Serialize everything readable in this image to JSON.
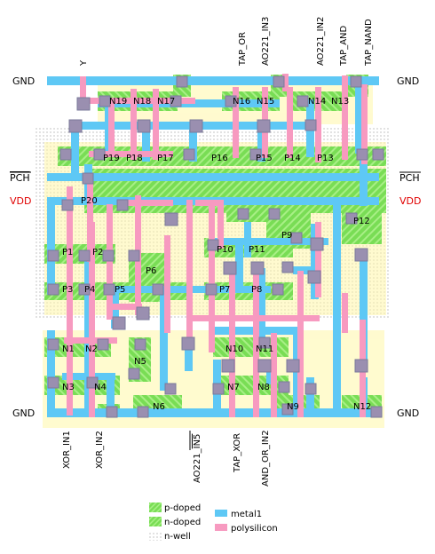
{
  "colors": {
    "metal1": "#5ec8f5",
    "polysilicon": "#f79ac0",
    "diff": "#6fdc4f",
    "contact": "#7a7a9a",
    "nwell_dot": "#bbbbbb",
    "vdd_label": "#e00000"
  },
  "rails": {
    "gnd_left": "GND",
    "gnd_right": "GND",
    "pch_left": "PCH",
    "pch_right": "PCH",
    "vdd_left": "VDD",
    "vdd_right": "VDD"
  },
  "top_pins": [
    "Y",
    "TAP_OR",
    "AO221_IN3",
    "AO221_IN2",
    "TAP_AND",
    "TAP_NAND"
  ],
  "bottom_pins": [
    "XOR_IN1",
    "XOR_IN2",
    "AO221_IN5",
    "TAP_XOR",
    "AND_OR_IN2"
  ],
  "bottom_overlined": "IN5",
  "bottom_prefix": "AO221_",
  "transistors": {
    "top_n": [
      "N19",
      "N18",
      "N17",
      "N16",
      "N15",
      "N14",
      "N13"
    ],
    "p_row": [
      "P19",
      "P18",
      "P17",
      "P16",
      "P15",
      "P14",
      "P13"
    ],
    "p_misc": [
      "P20",
      "P12",
      "P9",
      "P10",
      "P11",
      "P1",
      "P2",
      "P6",
      "P3",
      "P4",
      "P5",
      "P7",
      "P8"
    ],
    "n_bottom": [
      "N1",
      "N2",
      "N10",
      "N11",
      "N5",
      "N3",
      "N4",
      "N7",
      "N8",
      "N6",
      "N9",
      "N12"
    ]
  },
  "legend": {
    "p_doped": "p-doped",
    "n_doped": "n-doped",
    "n_well": "n-well",
    "metal1": "metal1",
    "polysilicon": "polysilicon"
  }
}
